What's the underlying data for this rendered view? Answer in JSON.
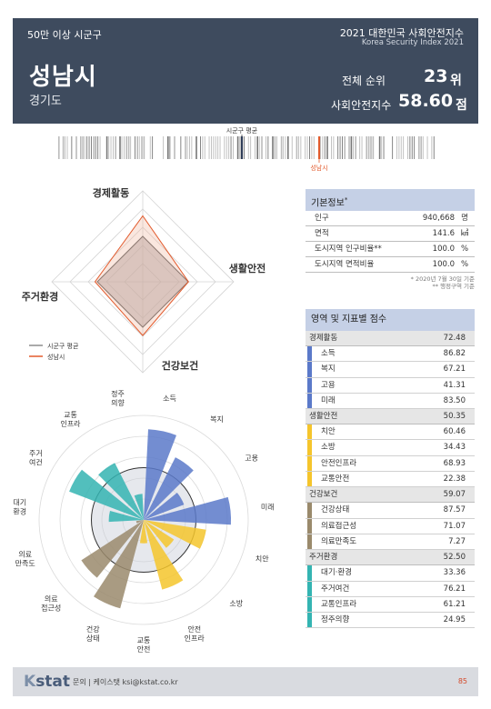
{
  "header": {
    "category": "50만 이상 시군구",
    "index_title": "2021 대한민국 사회안전지수",
    "index_title_en": "Korea Security Index 2021",
    "city": "성남시",
    "province": "경기도",
    "rank_label": "전체 순위",
    "rank_value": "23",
    "rank_unit": "위",
    "score_label": "사회안전지수",
    "score_value": "58.60",
    "score_unit": "점"
  },
  "strip": {
    "avg_label": "시군구 평균",
    "city_label": "성남시"
  },
  "radar": {
    "axes": [
      "경제활동",
      "생활안전",
      "건강보건",
      "주거환경"
    ],
    "legend_avg": "시군구 평균",
    "legend_city": "성남시",
    "avg_values": [
      50,
      50,
      50,
      50
    ],
    "city_values": [
      72.48,
      50.35,
      59.07,
      52.5
    ],
    "max": 100,
    "avg_color": "#555555",
    "city_color": "#e25a2c"
  },
  "info": {
    "title": "기본정보",
    "title_mark": "*",
    "rows": [
      {
        "label": "인구",
        "value": "940,668",
        "unit": "명"
      },
      {
        "label": "면적",
        "value": "141.6",
        "unit": "㎢"
      },
      {
        "label": "도시지역 인구비율**",
        "value": "100.0",
        "unit": "%"
      },
      {
        "label": "도시지역 면적비율",
        "value": "100.0",
        "unit": "%"
      }
    ],
    "note1": "* 2020년 7월 30일 기준",
    "note2": "** 행정구역 기준"
  },
  "scores": {
    "title": "영역 및 지표별 점수",
    "categories": [
      {
        "label": "경제활동",
        "value": "72.48",
        "color": "#5b79c9",
        "items": [
          {
            "label": "소득",
            "value": "86.82"
          },
          {
            "label": "복지",
            "value": "67.21"
          },
          {
            "label": "고용",
            "value": "41.31"
          },
          {
            "label": "미래",
            "value": "83.50"
          }
        ]
      },
      {
        "label": "생활안전",
        "value": "50.35",
        "color": "#f5c52c",
        "items": [
          {
            "label": "치안",
            "value": "60.46"
          },
          {
            "label": "소방",
            "value": "34.43"
          },
          {
            "label": "안전인프라",
            "value": "68.93"
          },
          {
            "label": "교통안전",
            "value": "22.38"
          }
        ]
      },
      {
        "label": "건강보건",
        "value": "59.07",
        "color": "#9a8a6c",
        "items": [
          {
            "label": "건강상태",
            "value": "87.57"
          },
          {
            "label": "의료접근성",
            "value": "71.07"
          },
          {
            "label": "의료만족도",
            "value": "7.27"
          }
        ]
      },
      {
        "label": "주거환경",
        "value": "52.50",
        "color": "#34b4b2",
        "items": [
          {
            "label": "대기·환경",
            "value": "33.36"
          },
          {
            "label": "주거여건",
            "value": "76.21"
          },
          {
            "label": "교통인프라",
            "value": "61.21"
          },
          {
            "label": "정주의향",
            "value": "24.95"
          }
        ]
      }
    ]
  },
  "chart_data": [
    {
      "type": "radar",
      "axes": [
        "경제활동",
        "생활안전",
        "건강보건",
        "주거환경"
      ],
      "series": [
        {
          "name": "시군구 평균",
          "values": [
            50,
            50,
            50,
            50
          ]
        },
        {
          "name": "성남시",
          "values": [
            72.48,
            50.35,
            59.07,
            52.5
          ]
        }
      ],
      "range": [
        0,
        100
      ]
    },
    {
      "type": "polar-bar",
      "categories": [
        "소득",
        "복지",
        "고용",
        "미래",
        "치안",
        "소방",
        "안전인프라",
        "교통안전",
        "건강상태",
        "의료접근성",
        "의료만족도",
        "대기·환경",
        "주거여건",
        "교통인프라",
        "정주의향"
      ],
      "values": [
        86.82,
        67.21,
        41.31,
        83.5,
        60.46,
        34.43,
        68.93,
        22.38,
        87.57,
        71.07,
        7.27,
        33.36,
        76.21,
        61.21,
        24.95
      ],
      "range": [
        0,
        100
      ]
    }
  ],
  "polar": {
    "labels": [
      "소득",
      "복지",
      "고용",
      "미래",
      "치안",
      "소방",
      "안전\n인프라",
      "교통\n안전",
      "건강\n상태",
      "의료\n접근성",
      "의료\n만족도",
      "대기\n환경",
      "주거\n여건",
      "교통\n인프라",
      "정주\n의향"
    ],
    "values": [
      86.82,
      67.21,
      41.31,
      83.5,
      60.46,
      34.43,
      68.93,
      22.38,
      87.57,
      71.07,
      7.27,
      33.36,
      76.21,
      61.21,
      24.95
    ],
    "colors": [
      "#5b79c9",
      "#5b79c9",
      "#5b79c9",
      "#5b79c9",
      "#f5c52c",
      "#f5c52c",
      "#f5c52c",
      "#f5c52c",
      "#9a8a6c",
      "#9a8a6c",
      "#9a8a6c",
      "#34b4b2",
      "#34b4b2",
      "#34b4b2",
      "#34b4b2"
    ],
    "avg": 50
  },
  "footer": {
    "logo_k": "K",
    "logo_rest": "stat",
    "contact": "문의 | 케이스탯 ksi@kstat.co.kr",
    "page": "85"
  }
}
